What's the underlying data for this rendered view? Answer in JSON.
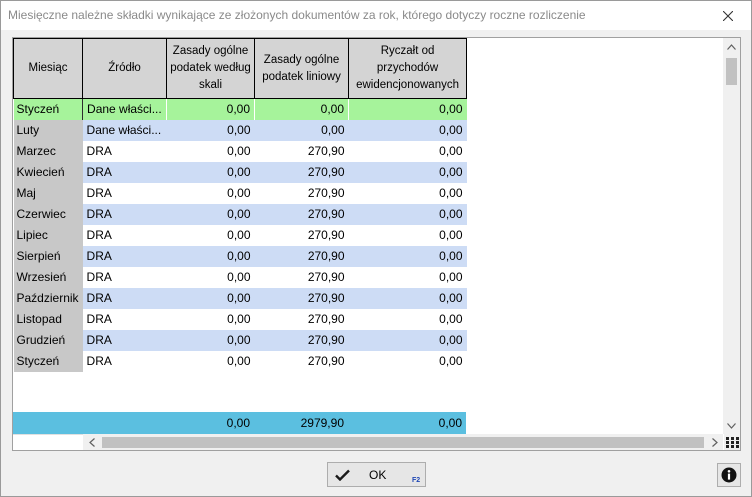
{
  "window": {
    "title": "Miesięczne należne składki wynikające ze złożonych dokumentów za rok, którego dotyczy roczne rozliczenie",
    "close_icon": "close-icon"
  },
  "grid": {
    "columns": [
      {
        "label": "Miesiąc"
      },
      {
        "label": "Źródło"
      },
      {
        "label": "Zasady ogólne podatek według skali"
      },
      {
        "label": "Zasady ogólne podatek liniowy"
      },
      {
        "label": "Ryczałt od przychodów ewidencjonowanych"
      }
    ],
    "rows": [
      {
        "month": "Styczeń",
        "source": "Dane właści...",
        "skala": "0,00",
        "liniowy": "0,00",
        "ryczalt": "0,00",
        "selected": true
      },
      {
        "month": "Luty",
        "source": "Dane właści...",
        "skala": "0,00",
        "liniowy": "0,00",
        "ryczalt": "0,00"
      },
      {
        "month": "Marzec",
        "source": "DRA",
        "skala": "0,00",
        "liniowy": "270,90",
        "ryczalt": "0,00"
      },
      {
        "month": "Kwiecień",
        "source": "DRA",
        "skala": "0,00",
        "liniowy": "270,90",
        "ryczalt": "0,00"
      },
      {
        "month": "Maj",
        "source": "DRA",
        "skala": "0,00",
        "liniowy": "270,90",
        "ryczalt": "0,00"
      },
      {
        "month": "Czerwiec",
        "source": "DRA",
        "skala": "0,00",
        "liniowy": "270,90",
        "ryczalt": "0,00"
      },
      {
        "month": "Lipiec",
        "source": "DRA",
        "skala": "0,00",
        "liniowy": "270,90",
        "ryczalt": "0,00"
      },
      {
        "month": "Sierpień",
        "source": "DRA",
        "skala": "0,00",
        "liniowy": "270,90",
        "ryczalt": "0,00"
      },
      {
        "month": "Wrzesień",
        "source": "DRA",
        "skala": "0,00",
        "liniowy": "270,90",
        "ryczalt": "0,00"
      },
      {
        "month": "Październik",
        "source": "DRA",
        "skala": "0,00",
        "liniowy": "270,90",
        "ryczalt": "0,00"
      },
      {
        "month": "Listopad",
        "source": "DRA",
        "skala": "0,00",
        "liniowy": "270,90",
        "ryczalt": "0,00"
      },
      {
        "month": "Grudzień",
        "source": "DRA",
        "skala": "0,00",
        "liniowy": "270,90",
        "ryczalt": "0,00"
      },
      {
        "month": "Styczeń",
        "source": "DRA",
        "skala": "0,00",
        "liniowy": "270,90",
        "ryczalt": "0,00"
      }
    ],
    "totals": {
      "skala": "0,00",
      "liniowy": "2979,90",
      "ryczalt": "0,00"
    },
    "colors": {
      "selected": "#a6f39b",
      "band_blue": "#cddcf5",
      "totals": "#5bbfe0",
      "month_col": "#c8c8c8",
      "header": "#d4d4d4"
    }
  },
  "buttons": {
    "ok_label": "OK",
    "ok_shortcut": "F2",
    "ok_icon": "checkmark-icon",
    "info_icon": "info-icon"
  }
}
